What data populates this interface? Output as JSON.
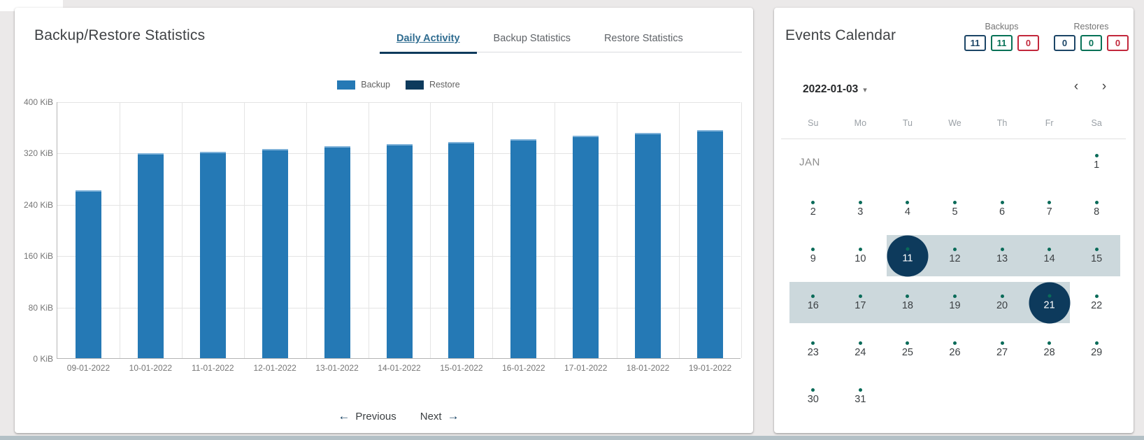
{
  "page": {
    "background": "#ebe9e9",
    "bottom_strip_color": "#b3c0c6"
  },
  "stats_panel": {
    "title": "Backup/Restore Statistics",
    "tabs": [
      {
        "label": "Daily Activity",
        "active": true
      },
      {
        "label": "Backup Statistics",
        "active": false
      },
      {
        "label": "Restore Statistics",
        "active": false
      }
    ],
    "pager": {
      "prev_label": "Previous",
      "next_label": "Next",
      "prev_icon": "←",
      "next_icon": "→"
    }
  },
  "chart_data": {
    "type": "bar",
    "title": "Daily Activity",
    "categories": [
      "09-01-2022",
      "10-01-2022",
      "11-01-2022",
      "12-01-2022",
      "13-01-2022",
      "14-01-2022",
      "15-01-2022",
      "16-01-2022",
      "17-01-2022",
      "18-01-2022",
      "19-01-2022"
    ],
    "series": [
      {
        "name": "Backup",
        "color": "#2579b5",
        "values": [
          262,
          319,
          322,
          326,
          330,
          333,
          337,
          341,
          347,
          351,
          355
        ]
      },
      {
        "name": "Restore",
        "color": "#0d3a5c",
        "values": [
          0,
          0,
          0,
          0,
          0,
          0,
          0,
          0,
          0,
          0,
          0
        ]
      }
    ],
    "unit": "KiB",
    "yticks": [
      0,
      80,
      160,
      240,
      320,
      400
    ],
    "ylim": [
      0,
      400
    ],
    "grid": true,
    "legend_position": "top-center"
  },
  "calendar_panel": {
    "title": "Events Calendar",
    "counters": {
      "backups": {
        "label": "Backups",
        "boxes": [
          {
            "value": "11",
            "color": "navy"
          },
          {
            "value": "11",
            "color": "green"
          },
          {
            "value": "0",
            "color": "red"
          }
        ]
      },
      "restores": {
        "label": "Restores",
        "boxes": [
          {
            "value": "0",
            "color": "navy"
          },
          {
            "value": "0",
            "color": "green"
          },
          {
            "value": "0",
            "color": "red"
          }
        ]
      }
    },
    "colors": {
      "navy": "#1c4566",
      "green": "#077257",
      "red": "#c2283c",
      "selected": "#0d3a5c",
      "band": "#ccd8dc",
      "dot": "#0a6b59"
    },
    "date_selector": {
      "value": "2022-01-03",
      "caret": "▾"
    },
    "nav": {
      "prev": "‹",
      "next": "›"
    },
    "day_headers": [
      "Su",
      "Mo",
      "Tu",
      "We",
      "Th",
      "Fr",
      "Sa"
    ],
    "weeks": [
      {
        "month_label": "JAN",
        "band": null,
        "days": [
          null,
          null,
          null,
          null,
          null,
          null,
          {
            "day": 1,
            "dot": true,
            "selected": false
          }
        ]
      },
      {
        "month_label": null,
        "band": null,
        "days": [
          {
            "day": 2,
            "dot": true,
            "selected": false
          },
          {
            "day": 3,
            "dot": true,
            "selected": false
          },
          {
            "day": 4,
            "dot": true,
            "selected": false
          },
          {
            "day": 5,
            "dot": true,
            "selected": false
          },
          {
            "day": 6,
            "dot": true,
            "selected": false
          },
          {
            "day": 7,
            "dot": true,
            "selected": false
          },
          {
            "day": 8,
            "dot": true,
            "selected": false
          }
        ]
      },
      {
        "month_label": null,
        "band": {
          "from": 2,
          "to": 6,
          "extend_left": false,
          "extend_right": true
        },
        "days": [
          {
            "day": 9,
            "dot": true,
            "selected": false
          },
          {
            "day": 10,
            "dot": true,
            "selected": false
          },
          {
            "day": 11,
            "dot": true,
            "selected": true
          },
          {
            "day": 12,
            "dot": true,
            "selected": false
          },
          {
            "day": 13,
            "dot": true,
            "selected": false
          },
          {
            "day": 14,
            "dot": true,
            "selected": false
          },
          {
            "day": 15,
            "dot": true,
            "selected": false
          }
        ]
      },
      {
        "month_label": null,
        "band": {
          "from": 0,
          "to": 5,
          "extend_left": true,
          "extend_right": false
        },
        "days": [
          {
            "day": 16,
            "dot": true,
            "selected": false
          },
          {
            "day": 17,
            "dot": true,
            "selected": false
          },
          {
            "day": 18,
            "dot": true,
            "selected": false
          },
          {
            "day": 19,
            "dot": true,
            "selected": false
          },
          {
            "day": 20,
            "dot": true,
            "selected": false
          },
          {
            "day": 21,
            "dot": true,
            "selected": true
          },
          {
            "day": 22,
            "dot": true,
            "selected": false
          }
        ]
      },
      {
        "month_label": null,
        "band": null,
        "days": [
          {
            "day": 23,
            "dot": true,
            "selected": false
          },
          {
            "day": 24,
            "dot": true,
            "selected": false
          },
          {
            "day": 25,
            "dot": true,
            "selected": false
          },
          {
            "day": 26,
            "dot": true,
            "selected": false
          },
          {
            "day": 27,
            "dot": true,
            "selected": false
          },
          {
            "day": 28,
            "dot": true,
            "selected": false
          },
          {
            "day": 29,
            "dot": true,
            "selected": false
          }
        ]
      },
      {
        "month_label": null,
        "band": null,
        "days": [
          {
            "day": 30,
            "dot": true,
            "selected": false
          },
          {
            "day": 31,
            "dot": true,
            "selected": false
          },
          null,
          null,
          null,
          null,
          null
        ]
      }
    ]
  }
}
